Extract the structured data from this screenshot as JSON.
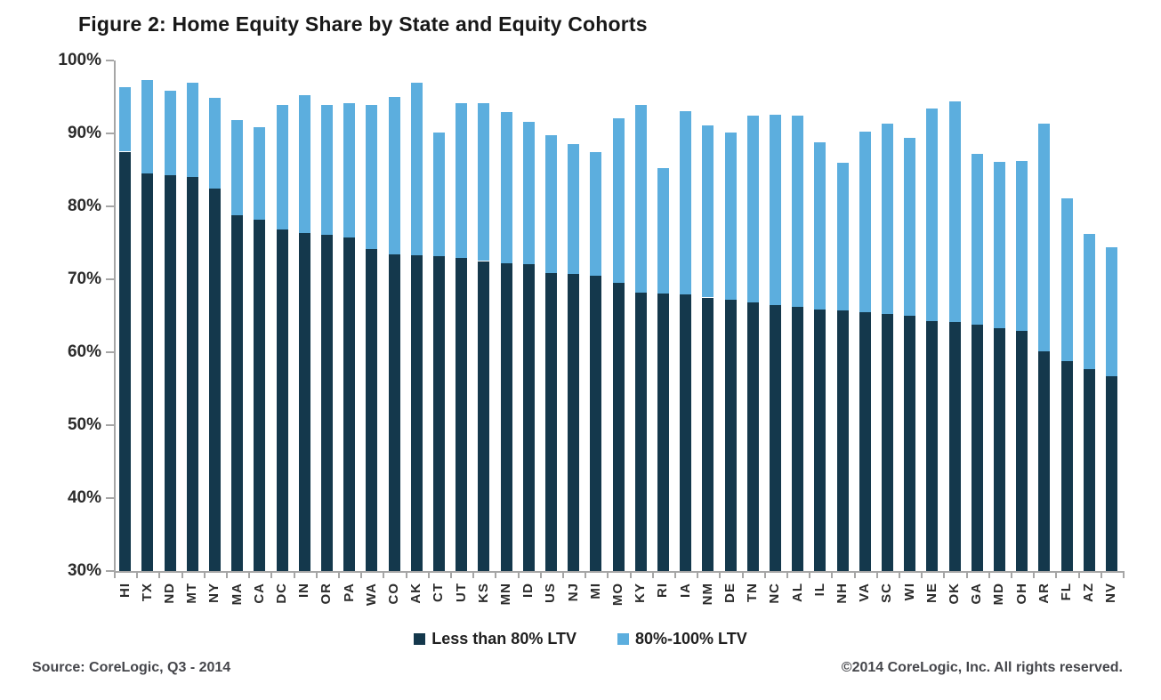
{
  "title": "Figure 2: Home Equity Share by State and Equity Cohorts",
  "footer": {
    "source": "Source: CoreLogic, Q3 - 2014",
    "copyright": "©2014 CoreLogic, Inc. All rights reserved."
  },
  "colors": {
    "dark_navy": "#14384c",
    "light_blue": "#5caede",
    "axis_gray": "#a6a6a6"
  },
  "legend": {
    "items": [
      {
        "label": "Less than 80% LTV",
        "color": "#14384c"
      },
      {
        "label": "80%-100% LTV",
        "color": "#5caede"
      }
    ]
  },
  "chart_data": {
    "type": "bar",
    "subtype": "stacked-vertical",
    "title": "Figure 2: Home Equity Share by State and Equity Cohorts",
    "xlabel": "",
    "ylabel": "",
    "ylim": [
      30,
      100
    ],
    "yticks": [
      30,
      40,
      50,
      60,
      70,
      80,
      90,
      100
    ],
    "ytick_suffix": "%",
    "grid": false,
    "legend_position": "bottom",
    "categories": [
      "HI",
      "TX",
      "ND",
      "MT",
      "NY",
      "MA",
      "CA",
      "DC",
      "IN",
      "OR",
      "PA",
      "WA",
      "CO",
      "AK",
      "CT",
      "UT",
      "KS",
      "MN",
      "ID",
      "US",
      "NJ",
      "MI",
      "MO",
      "KY",
      "RI",
      "IA",
      "NM",
      "DE",
      "TN",
      "NC",
      "AL",
      "IL",
      "NH",
      "VA",
      "SC",
      "WI",
      "NE",
      "OK",
      "GA",
      "MD",
      "OH",
      "AR",
      "FL",
      "AZ",
      "NV"
    ],
    "series": [
      {
        "name": "Less than 80% LTV",
        "color": "#14384c",
        "values": [
          87.5,
          84.5,
          84.3,
          84.0,
          82.4,
          78.8,
          78.2,
          76.8,
          76.3,
          76.1,
          75.7,
          74.1,
          73.4,
          73.3,
          73.2,
          72.9,
          72.5,
          72.2,
          72.1,
          70.8,
          70.7,
          70.5,
          69.5,
          68.2,
          68.1,
          67.9,
          67.5,
          67.2,
          66.8,
          66.5,
          66.2,
          65.8,
          65.7,
          65.5,
          65.2,
          65.0,
          64.3,
          64.1,
          63.8,
          63.3,
          62.9,
          60.1,
          58.8,
          57.7,
          56.7
        ]
      },
      {
        "name": "80%-100% LTV",
        "color": "#5caede",
        "values": [
          8.8,
          12.8,
          11.6,
          13.0,
          12.5,
          13.0,
          12.6,
          17.1,
          18.9,
          17.8,
          18.4,
          19.8,
          21.6,
          23.7,
          16.9,
          21.2,
          21.6,
          20.7,
          19.5,
          18.9,
          17.8,
          16.9,
          22.6,
          25.7,
          17.1,
          25.2,
          23.6,
          22.9,
          25.6,
          26.1,
          26.2,
          23.0,
          20.3,
          24.8,
          26.1,
          24.4,
          29.1,
          30.3,
          23.4,
          22.8,
          23.3,
          31.2,
          22.3,
          18.5,
          17.7
        ]
      }
    ],
    "stacked_totals": [
      96.3,
      97.3,
      95.9,
      97.0,
      94.9,
      91.8,
      90.8,
      93.9,
      95.2,
      93.9,
      94.1,
      93.9,
      95.0,
      97.0,
      90.1,
      94.1,
      94.1,
      92.9,
      91.6,
      89.7,
      88.5,
      87.4,
      92.1,
      93.9,
      85.2,
      93.1,
      91.1,
      90.1,
      92.4,
      92.6,
      92.4,
      88.8,
      86.0,
      90.3,
      91.3,
      89.4,
      93.4,
      94.4,
      87.2,
      86.1,
      86.2,
      91.3,
      81.1,
      76.2,
      74.4
    ]
  }
}
